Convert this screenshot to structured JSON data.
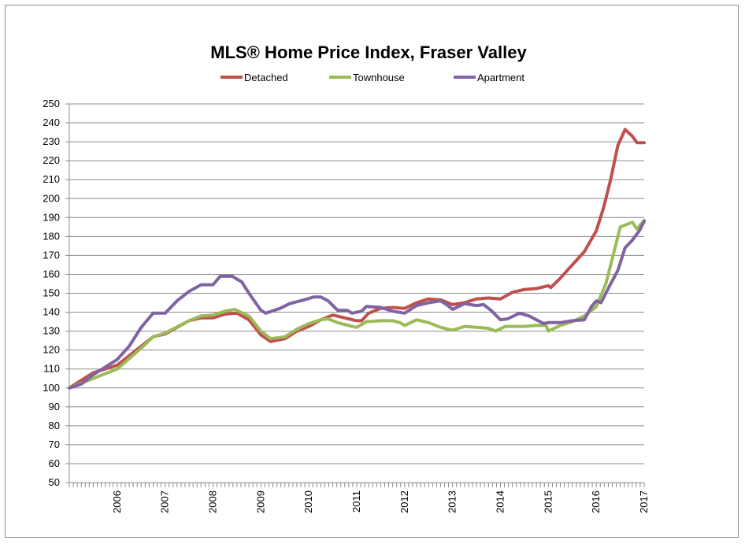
{
  "chart_data": {
    "type": "line",
    "title": "MLS® Home Price Index, Fraser Valley",
    "xlabel": "",
    "ylabel": "",
    "ylim": [
      50,
      250
    ],
    "xlim": [
      2005,
      2017
    ],
    "yticks": [
      "50",
      "60",
      "70",
      "80",
      "90",
      "100",
      "110",
      "120",
      "130",
      "140",
      "150",
      "160",
      "170",
      "180",
      "190",
      "200",
      "210",
      "220",
      "230",
      "240",
      "250"
    ],
    "xticks": [
      "2006",
      "2007",
      "2008",
      "2009",
      "2010",
      "2011",
      "2012",
      "2013",
      "2014",
      "2015",
      "2016",
      "2017"
    ],
    "grid": true,
    "legend_position": "top",
    "series": [
      {
        "name": "Detached",
        "color": "#c0504d",
        "x": [
          2005,
          2005.5,
          2006,
          2006.5,
          2006.75,
          2007,
          2007.25,
          2007.5,
          2007.75,
          2008,
          2008.25,
          2008.5,
          2008.75,
          2009,
          2009.2,
          2009.5,
          2009.75,
          2010,
          2010.25,
          2010.5,
          2010.75,
          2011,
          2011.1,
          2011.25,
          2011.5,
          2011.75,
          2012,
          2012.25,
          2012.5,
          2012.75,
          2013,
          2013.25,
          2013.5,
          2013.75,
          2014,
          2014.25,
          2014.5,
          2014.75,
          2015,
          2015.05,
          2015.25,
          2015.5,
          2015.75,
          2016,
          2016.15,
          2016.3,
          2016.45,
          2016.6,
          2016.75,
          2016.85,
          2017
        ],
        "y": [
          100,
          108,
          112,
          122,
          127,
          128.5,
          132,
          135.5,
          137,
          137,
          139,
          139.5,
          136,
          128,
          124.5,
          126,
          130,
          132.5,
          136,
          138.5,
          137,
          135.5,
          135.5,
          139.5,
          142,
          142.5,
          142,
          145,
          147,
          146.5,
          144,
          145,
          147,
          147.5,
          147,
          150.5,
          152,
          152.5,
          154,
          153,
          158,
          165,
          172,
          183,
          195,
          210,
          228,
          236.5,
          233,
          229.5,
          229.5
        ]
      },
      {
        "name": "Townhouse",
        "color": "#9bbb59",
        "x": [
          2005,
          2005.5,
          2006,
          2006.5,
          2006.75,
          2007,
          2007.5,
          2007.75,
          2008,
          2008.25,
          2008.45,
          2008.75,
          2009,
          2009.2,
          2009.5,
          2009.75,
          2010,
          2010.25,
          2010.4,
          2010.6,
          2010.9,
          2011,
          2011.2,
          2011.5,
          2011.75,
          2011.9,
          2012,
          2012.25,
          2012.5,
          2012.75,
          2013,
          2013.25,
          2013.5,
          2013.75,
          2013.9,
          2014.1,
          2014.5,
          2014.75,
          2014.95,
          2015,
          2015.25,
          2015.5,
          2015.75,
          2016,
          2016.2,
          2016.35,
          2016.5,
          2016.75,
          2016.85,
          2017
        ],
        "y": [
          100,
          105,
          110,
          121,
          127,
          129,
          135.5,
          138,
          138.5,
          140.5,
          141.5,
          138,
          130,
          126,
          127,
          131,
          134,
          136,
          136.5,
          134.5,
          132.5,
          132,
          135,
          135.5,
          135.5,
          134.5,
          133,
          136,
          134.5,
          132,
          130.5,
          132.5,
          132,
          131.5,
          130,
          132.5,
          132.5,
          133,
          133,
          130,
          133,
          135,
          138,
          143,
          155,
          170,
          185,
          187.5,
          184,
          188.5
        ]
      },
      {
        "name": "Apartment",
        "color": "#8064a2",
        "x": [
          2005,
          2005.25,
          2005.5,
          2006,
          2006.25,
          2006.5,
          2006.75,
          2007,
          2007.25,
          2007.5,
          2007.75,
          2008,
          2008.15,
          2008.4,
          2008.6,
          2008.75,
          2009,
          2009.1,
          2009.4,
          2009.6,
          2009.9,
          2010.1,
          2010.25,
          2010.4,
          2010.6,
          2010.8,
          2010.9,
          2011.1,
          2011.2,
          2011.5,
          2011.75,
          2012,
          2012.25,
          2012.5,
          2012.75,
          2012.9,
          2013,
          2013.25,
          2013.5,
          2013.65,
          2013.8,
          2014,
          2014.15,
          2014.4,
          2014.6,
          2014.75,
          2014.9,
          2015,
          2015.25,
          2015.5,
          2015.75,
          2015.9,
          2016,
          2016.1,
          2016.3,
          2016.45,
          2016.6,
          2016.75,
          2016.9,
          2017
        ],
        "y": [
          100,
          102,
          107,
          115,
          122,
          132,
          139.5,
          139.5,
          146,
          151,
          154.5,
          154.5,
          159,
          159,
          156,
          150,
          141,
          139.5,
          142,
          144.5,
          146.5,
          148,
          148,
          146,
          141,
          141,
          139.5,
          140.5,
          143,
          142.5,
          140.5,
          139.5,
          143.5,
          145,
          146,
          143.5,
          141.5,
          144.5,
          143.5,
          144,
          141,
          136,
          136.5,
          139.5,
          138,
          136,
          134,
          134.5,
          134.5,
          135.5,
          136,
          143,
          146,
          145,
          155,
          162,
          174,
          178,
          183,
          188
        ]
      }
    ]
  }
}
